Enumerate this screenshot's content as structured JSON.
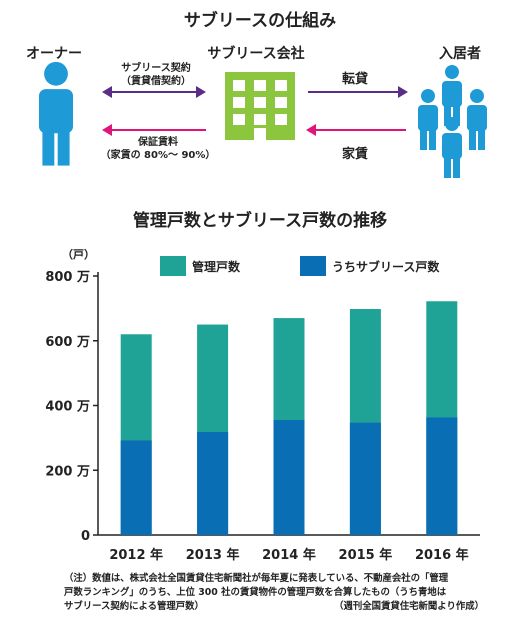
{
  "diagram": {
    "title": "サブリースの仕組み",
    "owner_label": "オーナー",
    "company_label": "サブリース会社",
    "tenant_label": "入居者",
    "arrow_top_left_label_1": "サブリース契約",
    "arrow_top_left_label_2": "（賃貸借契約）",
    "arrow_bottom_left_label_1": "保証賃料",
    "arrow_bottom_left_label_2": "（家賃の 80%〜 90%）",
    "arrow_top_right_label": "転貸",
    "arrow_bottom_right_label": "家賃",
    "colors": {
      "person": "#1e9bd7",
      "building": "#8cc63f",
      "arrow_purple": "#5b2d86",
      "arrow_pink": "#e0157a"
    }
  },
  "chart_data": {
    "type": "bar",
    "title": "管理戸数とサブリース戸数の推移",
    "ylabel": "（戸）",
    "categories": [
      "2012 年",
      "2013 年",
      "2014 年",
      "2015 年",
      "2016 年"
    ],
    "series": [
      {
        "name": "管理戸数",
        "values": [
          620,
          650,
          670,
          698,
          722
        ],
        "color": "#1fa396"
      },
      {
        "name": "うちサブリース戸数",
        "values": [
          292,
          318,
          355,
          347,
          363
        ],
        "color": "#0a6eb5"
      }
    ],
    "ylim": [
      0,
      800
    ],
    "yticks": [
      0,
      200,
      400,
      600,
      800
    ],
    "ytick_labels": [
      "0",
      "200 万",
      "400 万",
      "600 万",
      "800 万"
    ],
    "grid": false,
    "legend_placement": "top"
  },
  "footnote": {
    "line1": "（注）数値は、株式会社全国賃貸住宅新聞社が毎年夏に発表している、不動産会社の「管理",
    "line2": "戸数ランキング」のうち、上位 300 社の賃貸物件の管理戸数を合算したもの（うち青地は",
    "line3": "サブリース契約による管理戸数）",
    "source": "（週刊全国賃貸住宅新聞より作成）"
  }
}
